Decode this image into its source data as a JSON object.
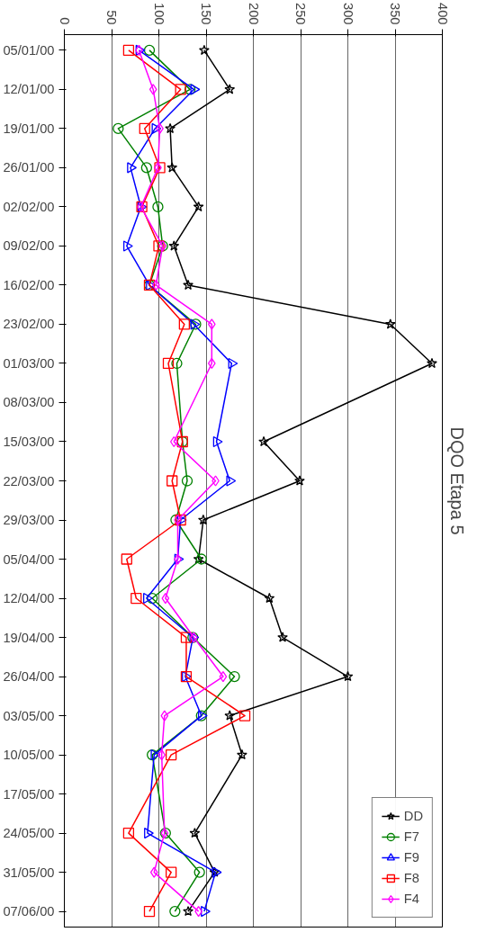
{
  "chart_data": {
    "type": "line",
    "title": "DQO Etapa 5",
    "categories": [
      "05/01/00",
      "12/01/00",
      "19/01/00",
      "26/01/00",
      "02/02/00",
      "09/02/00",
      "16/02/00",
      "23/02/00",
      "01/03/00",
      "08/03/00",
      "15/03/00",
      "22/03/00",
      "29/03/00",
      "05/04/00",
      "12/04/00",
      "19/04/00",
      "26/04/00",
      "03/05/00",
      "10/05/00",
      "17/05/00",
      "24/05/00",
      "31/05/00",
      "07/06/00"
    ],
    "series": [
      {
        "name": "DD",
        "color": "#000000",
        "marker": "star",
        "values": [
          148,
          175,
          112,
          114,
          142,
          116,
          131,
          345,
          389,
          null,
          211,
          249,
          147,
          142,
          217,
          231,
          300,
          175,
          188,
          null,
          138,
          159,
          131
        ]
      },
      {
        "name": "F7",
        "color": "#008000",
        "marker": "circle",
        "values": [
          90,
          133,
          57,
          87,
          99,
          104,
          90,
          139,
          119,
          null,
          125,
          130,
          118,
          145,
          93,
          136,
          180,
          145,
          93,
          null,
          107,
          143,
          117
        ]
      },
      {
        "name": "F9",
        "color": "#0000ff",
        "marker": "triangle",
        "values": [
          79,
          137,
          96,
          70,
          81,
          66,
          90,
          137,
          177,
          null,
          161,
          175,
          123,
          120,
          87,
          136,
          128,
          145,
          95,
          null,
          88,
          160,
          148
        ]
      },
      {
        "name": "F8",
        "color": "#ff0000",
        "marker": "square",
        "values": [
          68,
          123,
          85,
          101,
          82,
          100,
          90,
          127,
          110,
          null,
          125,
          114,
          123,
          66,
          76,
          129,
          129,
          191,
          113,
          null,
          68,
          113,
          90
        ]
      },
      {
        "name": "F4",
        "color": "#ff00ff",
        "marker": "diamond",
        "values": [
          79,
          94,
          101,
          99,
          81,
          104,
          97,
          156,
          156,
          null,
          116,
          160,
          120,
          120,
          107,
          137,
          168,
          106,
          103,
          null,
          106,
          95,
          142
        ]
      }
    ],
    "orientation": "horizontal",
    "xlim": [
      0,
      400
    ],
    "xticks": [
      0,
      50,
      100,
      150,
      200,
      250,
      300,
      350,
      400
    ],
    "grid": "x",
    "legend": "bottom right"
  }
}
